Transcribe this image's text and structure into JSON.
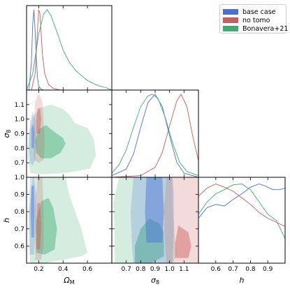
{
  "chart_data": {
    "type": "corner",
    "parameters": [
      {
        "key": "Om",
        "label": "Ω",
        "sub": "M",
        "range": [
          0.1,
          0.8
        ],
        "ticks": [
          0.2,
          0.4,
          0.6
        ],
        "tick_labels": [
          "0.2",
          "0.4",
          "0.6"
        ]
      },
      {
        "key": "s8",
        "label": "σ",
        "sub": "8",
        "range": [
          0.6,
          1.2
        ],
        "ticks": [
          0.7,
          0.8,
          0.9,
          1.0,
          1.1
        ],
        "tick_labels": [
          "0.7",
          "0.8",
          "0.9",
          "1.0",
          "1.1"
        ]
      },
      {
        "key": "h",
        "label": "h",
        "sub": "",
        "range": [
          0.5,
          1.0
        ],
        "ticks": [
          0.6,
          0.7,
          0.8,
          0.9
        ],
        "tick_labels": [
          "0.6",
          "0.7",
          "0.8",
          "0.9"
        ]
      }
    ],
    "y_tick_labels": {
      "s8": [
        "0.7",
        "0.8",
        "0.9",
        "1.0",
        "1.1"
      ],
      "h": [
        "0.6",
        "0.7",
        "0.8",
        "0.9",
        "1.0"
      ]
    },
    "series": [
      {
        "name": "base case",
        "color": "#4a6fd9"
      },
      {
        "name": "no tomo",
        "color": "#cc5a5a"
      },
      {
        "name": "Bonavera+21",
        "color": "#3cac74"
      }
    ],
    "marginals": {
      "Om": [
        {
          "series": "base case",
          "x": [
            0.12,
            0.14,
            0.15,
            0.16,
            0.17,
            0.18,
            0.19,
            0.2,
            0.22,
            0.24
          ],
          "y": [
            0,
            0.35,
            0.8,
            1.0,
            0.75,
            0.4,
            0.15,
            0.05,
            0.01,
            0
          ]
        },
        {
          "series": "no tomo",
          "x": [
            0.14,
            0.17,
            0.19,
            0.2,
            0.21,
            0.22,
            0.23,
            0.25,
            0.28,
            0.32,
            0.38
          ],
          "y": [
            0,
            0.2,
            0.75,
            1.0,
            0.95,
            0.7,
            0.45,
            0.2,
            0.07,
            0.02,
            0
          ]
        },
        {
          "series": "Bonavera+21",
          "x": [
            0.1,
            0.15,
            0.2,
            0.24,
            0.27,
            0.3,
            0.35,
            0.4,
            0.45,
            0.5,
            0.55,
            0.6,
            0.65,
            0.7,
            0.75,
            0.8
          ],
          "y": [
            0,
            0.2,
            0.7,
            0.95,
            1.0,
            0.93,
            0.72,
            0.5,
            0.35,
            0.25,
            0.18,
            0.12,
            0.08,
            0.05,
            0.03,
            0
          ]
        }
      ],
      "s8": [
        {
          "series": "base case",
          "x": [
            0.6,
            0.7,
            0.75,
            0.8,
            0.85,
            0.9,
            0.95,
            1.0,
            1.05,
            1.1,
            1.2
          ],
          "y": [
            0.02,
            0.1,
            0.28,
            0.6,
            0.9,
            1.0,
            0.85,
            0.5,
            0.18,
            0.05,
            0
          ]
        },
        {
          "series": "no tomo",
          "x": [
            0.6,
            0.8,
            0.9,
            0.95,
            1.0,
            1.05,
            1.08,
            1.12,
            1.16,
            1.2
          ],
          "y": [
            0,
            0.02,
            0.12,
            0.3,
            0.62,
            0.92,
            1.0,
            0.85,
            0.5,
            0.2
          ]
        },
        {
          "series": "Bonavera+21",
          "x": [
            0.6,
            0.65,
            0.7,
            0.75,
            0.8,
            0.85,
            0.88,
            0.92,
            0.97,
            1.02,
            1.07,
            1.12,
            1.2
          ],
          "y": [
            0.05,
            0.15,
            0.33,
            0.6,
            0.85,
            0.98,
            1.0,
            0.95,
            0.72,
            0.42,
            0.18,
            0.07,
            0.02
          ]
        }
      ],
      "h": [
        {
          "series": "base case",
          "x": [
            0.5,
            0.55,
            0.6,
            0.65,
            0.7,
            0.75,
            0.8,
            0.85,
            0.88,
            0.93,
            0.97,
            1.0
          ],
          "y": [
            0.55,
            0.68,
            0.72,
            0.7,
            0.78,
            0.85,
            0.93,
            0.97,
            0.95,
            0.9,
            0.9,
            0.92
          ]
        },
        {
          "series": "no tomo",
          "x": [
            0.5,
            0.55,
            0.6,
            0.65,
            0.7,
            0.75,
            0.8,
            0.85,
            0.9,
            0.95,
            1.0
          ],
          "y": [
            0.82,
            0.92,
            0.97,
            0.93,
            0.88,
            0.8,
            0.72,
            0.62,
            0.55,
            0.5,
            0.45
          ]
        },
        {
          "series": "Bonavera+21",
          "x": [
            0.5,
            0.55,
            0.6,
            0.65,
            0.7,
            0.75,
            0.8,
            0.85,
            0.9,
            0.95,
            1.0
          ],
          "y": [
            0.6,
            0.75,
            0.85,
            0.9,
            0.96,
            0.97,
            0.9,
            0.75,
            0.6,
            0.52,
            0.3
          ]
        }
      ]
    },
    "contours": {
      "s8_vs_Om": [
        {
          "series": "Bonavera+21",
          "level": "95%",
          "points": [
            [
              0.13,
              0.63
            ],
            [
              0.2,
              0.62
            ],
            [
              0.35,
              0.625
            ],
            [
              0.5,
              0.64
            ],
            [
              0.62,
              0.66
            ],
            [
              0.67,
              0.75
            ],
            [
              0.65,
              0.87
            ],
            [
              0.6,
              0.94
            ],
            [
              0.5,
              0.97
            ],
            [
              0.45,
              1.03
            ],
            [
              0.4,
              1.07
            ],
            [
              0.3,
              1.1
            ],
            [
              0.22,
              1.08
            ],
            [
              0.15,
              1.02
            ],
            [
              0.12,
              0.9
            ],
            [
              0.11,
              0.75
            ]
          ]
        },
        {
          "series": "Bonavera+21",
          "level": "68%",
          "points": [
            [
              0.22,
              0.73
            ],
            [
              0.3,
              0.73
            ],
            [
              0.38,
              0.77
            ],
            [
              0.42,
              0.83
            ],
            [
              0.4,
              0.87
            ],
            [
              0.35,
              0.9
            ],
            [
              0.3,
              0.93
            ],
            [
              0.26,
              0.96
            ],
            [
              0.2,
              0.93
            ],
            [
              0.17,
              0.85
            ],
            [
              0.18,
              0.77
            ]
          ]
        },
        {
          "series": "no tomo",
          "level": "95%",
          "points": [
            [
              0.16,
              0.72
            ],
            [
              0.2,
              0.7
            ],
            [
              0.24,
              0.72
            ],
            [
              0.25,
              0.85
            ],
            [
              0.24,
              1.0
            ],
            [
              0.23,
              1.12
            ],
            [
              0.2,
              1.18
            ],
            [
              0.17,
              1.12
            ],
            [
              0.16,
              0.95
            ]
          ]
        },
        {
          "series": "no tomo",
          "level": "68%",
          "points": [
            [
              0.18,
              0.9
            ],
            [
              0.21,
              0.9
            ],
            [
              0.22,
              1.0
            ],
            [
              0.21,
              1.08
            ],
            [
              0.19,
              1.07
            ],
            [
              0.18,
              0.98
            ]
          ]
        },
        {
          "series": "base case",
          "level": "95%",
          "points": [
            [
              0.13,
              0.7
            ],
            [
              0.15,
              0.68
            ],
            [
              0.17,
              0.72
            ],
            [
              0.18,
              0.85
            ],
            [
              0.17,
              1.0
            ],
            [
              0.15,
              1.05
            ],
            [
              0.13,
              0.98
            ],
            [
              0.12,
              0.82
            ]
          ]
        },
        {
          "series": "base case",
          "level": "68%",
          "points": [
            [
              0.14,
              0.8
            ],
            [
              0.16,
              0.8
            ],
            [
              0.165,
              0.9
            ],
            [
              0.155,
              0.97
            ],
            [
              0.14,
              0.93
            ]
          ]
        }
      ],
      "h_vs_Om": [
        {
          "series": "Bonavera+21",
          "level": "95%",
          "points": [
            [
              0.13,
              0.5
            ],
            [
              0.25,
              0.5
            ],
            [
              0.4,
              0.52
            ],
            [
              0.55,
              0.54
            ],
            [
              0.6,
              0.56
            ],
            [
              0.55,
              0.7
            ],
            [
              0.5,
              0.8
            ],
            [
              0.45,
              0.9
            ],
            [
              0.42,
              1.0
            ],
            [
              0.15,
              1.0
            ],
            [
              0.12,
              0.8
            ],
            [
              0.12,
              0.6
            ]
          ]
        },
        {
          "series": "Bonavera+21",
          "level": "68%",
          "points": [
            [
              0.18,
              0.56
            ],
            [
              0.25,
              0.55
            ],
            [
              0.33,
              0.58
            ],
            [
              0.35,
              0.7
            ],
            [
              0.32,
              0.82
            ],
            [
              0.28,
              0.88
            ],
            [
              0.22,
              0.86
            ],
            [
              0.18,
              0.75
            ]
          ]
        },
        {
          "series": "no tomo",
          "level": "95%",
          "points": [
            [
              0.17,
              0.52
            ],
            [
              0.22,
              0.52
            ],
            [
              0.24,
              0.6
            ],
            [
              0.24,
              0.8
            ],
            [
              0.23,
              1.0
            ],
            [
              0.19,
              1.0
            ],
            [
              0.17,
              0.8
            ]
          ]
        },
        {
          "series": "no tomo",
          "level": "68%",
          "points": [
            [
              0.18,
              0.58
            ],
            [
              0.21,
              0.58
            ],
            [
              0.22,
              0.72
            ],
            [
              0.21,
              0.85
            ],
            [
              0.19,
              0.85
            ],
            [
              0.18,
              0.7
            ]
          ]
        },
        {
          "series": "base case",
          "level": "95%",
          "points": [
            [
              0.13,
              0.55
            ],
            [
              0.16,
              0.55
            ],
            [
              0.18,
              0.7
            ],
            [
              0.18,
              0.9
            ],
            [
              0.16,
              1.0
            ],
            [
              0.13,
              1.0
            ],
            [
              0.12,
              0.8
            ]
          ]
        },
        {
          "series": "base case",
          "level": "68%",
          "points": [
            [
              0.14,
              0.65
            ],
            [
              0.16,
              0.65
            ],
            [
              0.165,
              0.8
            ],
            [
              0.16,
              0.95
            ],
            [
              0.14,
              0.95
            ],
            [
              0.135,
              0.8
            ]
          ]
        }
      ],
      "h_vs_s8": [
        {
          "series": "Bonavera+21",
          "level": "95%",
          "points": [
            [
              0.62,
              0.5
            ],
            [
              0.85,
              0.5
            ],
            [
              1.02,
              0.5
            ],
            [
              1.05,
              0.55
            ],
            [
              1.03,
              0.7
            ],
            [
              1.02,
              0.85
            ],
            [
              1.02,
              1.0
            ],
            [
              0.65,
              1.0
            ],
            [
              0.61,
              0.85
            ],
            [
              0.62,
              0.7
            ]
          ]
        },
        {
          "series": "Bonavera+21",
          "level": "68%",
          "points": [
            [
              0.76,
              0.5
            ],
            [
              0.87,
              0.5
            ],
            [
              0.96,
              0.54
            ],
            [
              0.96,
              0.68
            ],
            [
              0.93,
              0.73
            ],
            [
              0.86,
              0.76
            ],
            [
              0.8,
              0.7
            ],
            [
              0.76,
              0.6
            ]
          ]
        },
        {
          "series": "base case",
          "level": "95%",
          "points": [
            [
              0.75,
              0.5
            ],
            [
              1.02,
              0.5
            ],
            [
              1.03,
              0.7
            ],
            [
              1.03,
              0.9
            ],
            [
              1.02,
              1.0
            ],
            [
              0.75,
              1.0
            ],
            [
              0.73,
              0.8
            ],
            [
              0.74,
              0.6
            ]
          ]
        },
        {
          "series": "base case",
          "level": "68%",
          "points": [
            [
              0.84,
              0.62
            ],
            [
              0.95,
              0.62
            ],
            [
              0.96,
              0.8
            ],
            [
              0.95,
              1.0
            ],
            [
              0.84,
              1.0
            ],
            [
              0.83,
              0.8
            ]
          ]
        },
        {
          "series": "no tomo",
          "level": "95%",
          "points": [
            [
              0.98,
              0.5
            ],
            [
              1.2,
              0.5
            ],
            [
              1.2,
              1.0
            ],
            [
              0.98,
              1.0
            ],
            [
              0.96,
              0.8
            ],
            [
              0.97,
              0.6
            ]
          ]
        },
        {
          "series": "no tomo",
          "level": "68%",
          "points": [
            [
              1.04,
              0.53
            ],
            [
              1.13,
              0.53
            ],
            [
              1.15,
              0.6
            ],
            [
              1.13,
              0.68
            ],
            [
              1.06,
              0.72
            ],
            [
              1.04,
              0.62
            ]
          ]
        }
      ]
    }
  }
}
